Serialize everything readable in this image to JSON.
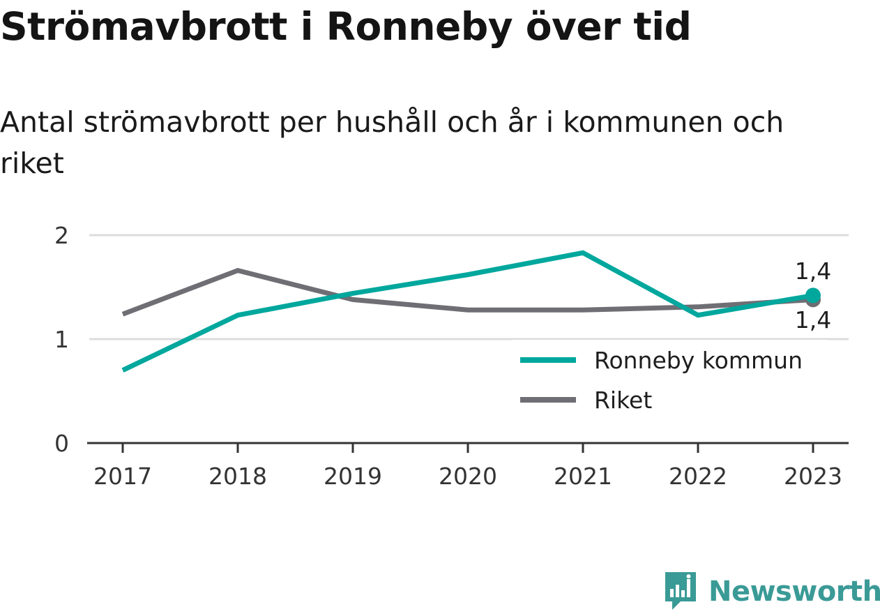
{
  "header": {
    "title": "Strömavbrott i Ronneby över tid",
    "subtitle": "Antal strömavbrott per hushåll och år i kommunen och riket"
  },
  "chart_data": {
    "type": "line",
    "title": "Strömavbrott i Ronneby över tid",
    "subtitle": "Antal strömavbrott per hushåll och år i kommunen och riket",
    "xlabel": "",
    "ylabel": "",
    "categories": [
      "2017",
      "2018",
      "2019",
      "2020",
      "2021",
      "2022",
      "2023"
    ],
    "ylim": [
      0,
      2
    ],
    "yticks": [
      "0",
      "1",
      "2"
    ],
    "grid": true,
    "legend_position": "bottom-right",
    "series": [
      {
        "name": "Ronneby kommun",
        "color": "#00a79d",
        "values": [
          0.7,
          1.23,
          1.44,
          1.62,
          1.83,
          1.23,
          1.42
        ],
        "end_label": "1,4"
      },
      {
        "name": "Riket",
        "color": "#6e6e74",
        "values": [
          1.24,
          1.66,
          1.38,
          1.28,
          1.28,
          1.31,
          1.38
        ],
        "end_label": "1,4"
      }
    ]
  },
  "brand": {
    "name": "Newsworthy",
    "color": "#3a9a96",
    "icon": "newsworthy-logo-icon"
  }
}
